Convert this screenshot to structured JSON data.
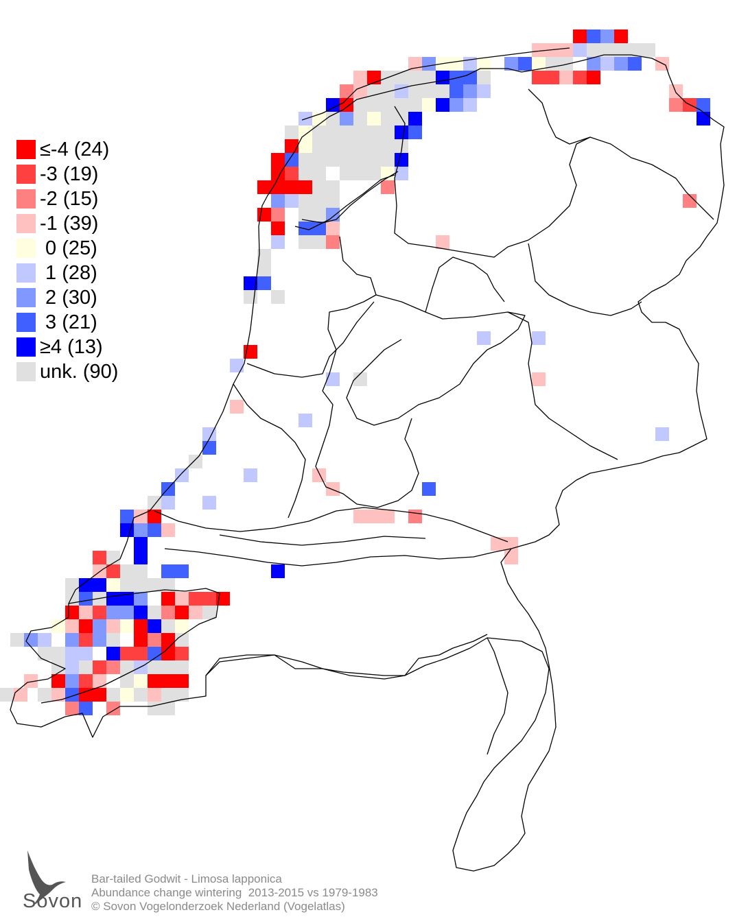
{
  "legend": {
    "items": [
      {
        "label": "≤-4 (24)",
        "color": "#ff0000"
      },
      {
        "label": "-3 (19)",
        "color": "#ff4040"
      },
      {
        "label": "-2 (15)",
        "color": "#ff8080"
      },
      {
        "label": "-1 (39)",
        "color": "#ffc0c0"
      },
      {
        "label": " 0 (25)",
        "color": "#ffffe0"
      },
      {
        "label": " 1 (28)",
        "color": "#c0c8ff"
      },
      {
        "label": " 2 (30)",
        "color": "#8098ff"
      },
      {
        "label": " 3 (21)",
        "color": "#4060ff"
      },
      {
        "label": "≥4 (13)",
        "color": "#0000ff"
      },
      {
        "label": "unk. (90)",
        "color": "#e0e0e0"
      }
    ]
  },
  "credit": {
    "line1": "Bar-tailed Godwit - Limosa lapponica",
    "line2": "Abundance change wintering  2013-2015 vs 1979-1983",
    "line3": "© Sovon Vogelonderzoek Nederland (Vogelatlas)"
  },
  "logo": {
    "text": "Sovon"
  }
}
